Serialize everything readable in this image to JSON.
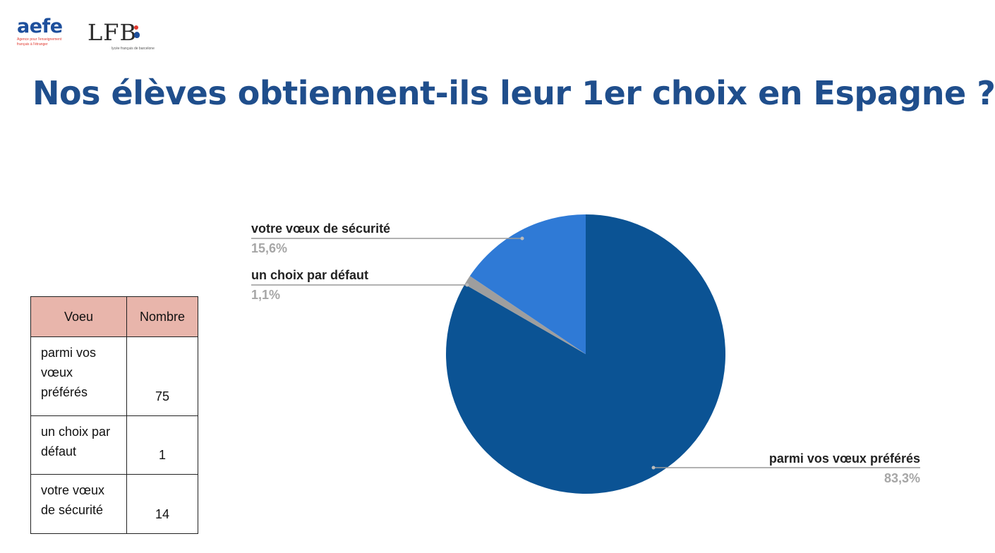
{
  "header": {
    "aefe_logo": {
      "brand": "aefe",
      "tagline": "Agence pour l'enseignement français à l'étranger"
    },
    "lfb_logo": {
      "mark": "LFB",
      "tagline": "lycée français de barcelone"
    },
    "title": "Nos élèves obtiennent-ils leur 1er choix en Espagne ?"
  },
  "table": {
    "headers": [
      "Voeu",
      "Nombre"
    ],
    "rows": [
      {
        "label": "parmi vos vœux préférés",
        "value": "75"
      },
      {
        "label": "un choix par défaut",
        "value": "1"
      },
      {
        "label": "votre vœux de sécurité",
        "value": "14"
      }
    ]
  },
  "chart_data": {
    "type": "pie",
    "categories": [
      "parmi vos vœux préférés",
      "un choix par défaut",
      "votre vœux de sécurité"
    ],
    "values": [
      75,
      1,
      14
    ],
    "percent_labels": [
      "83,3%",
      "1,1%",
      "15,6%"
    ],
    "colors": [
      "#0b5394",
      "#9e9e9e",
      "#2f7ad6"
    ],
    "start_angle": "12 o'clock, clockwise",
    "title": ""
  }
}
